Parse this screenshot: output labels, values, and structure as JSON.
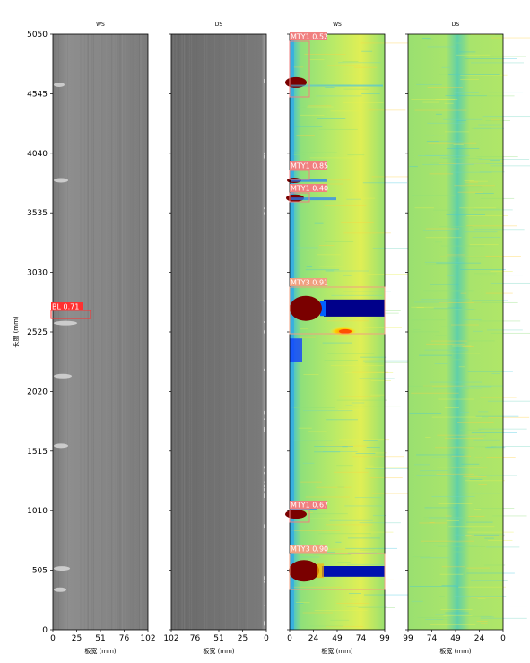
{
  "figure": {
    "ylabel": "长度 (mm)",
    "yticks": [
      "0",
      "505",
      "1010",
      "1515",
      "2020",
      "2525",
      "3030",
      "3535",
      "4040",
      "4545",
      "5050"
    ]
  },
  "panels": [
    {
      "id": "p1",
      "title": "WS",
      "xlabel": "板宽 (mm)",
      "xticks": [
        "0",
        "25",
        "51",
        "76",
        "102"
      ],
      "style": "gray-ws"
    },
    {
      "id": "p2",
      "title": "DS",
      "xlabel": "板宽 (mm)",
      "xticks": [
        "102",
        "76",
        "51",
        "25",
        "0"
      ],
      "style": "gray-ds"
    },
    {
      "id": "p3",
      "title": "WS",
      "xlabel": "板宽 (mm)",
      "xticks": [
        "0",
        "24",
        "49",
        "74",
        "99"
      ],
      "style": "heat-ws"
    },
    {
      "id": "p4",
      "title": "DS",
      "xlabel": "板宽 (mm)",
      "xticks": [
        "99",
        "74",
        "49",
        "24",
        "0"
      ],
      "style": "heat-ds"
    }
  ],
  "detections": [
    {
      "panel": "p1",
      "label": "BL 0.71"
    },
    {
      "panel": "p3",
      "label": "MTY1 0.52"
    },
    {
      "panel": "p3",
      "label": "MTY1 0.85"
    },
    {
      "panel": "p3",
      "label": "MTY1 0.40"
    },
    {
      "panel": "p3",
      "label": "MTY3 0.91"
    },
    {
      "panel": "p3",
      "label": "MTY1 0.67"
    },
    {
      "panel": "p3",
      "label": "MTY3 0.90"
    }
  ],
  "colors": {
    "gray_light": "#8a8a8a",
    "gray_dark": "#6e6e6e",
    "heat_green": "#8fe07a",
    "heat_yellow": "#e8f050",
    "heat_cyan": "#40c8e0",
    "heat_darkred": "#7a0000",
    "heat_navy": "#00008a",
    "box_red": "#ff3030",
    "box_salmon": "#f08080"
  }
}
